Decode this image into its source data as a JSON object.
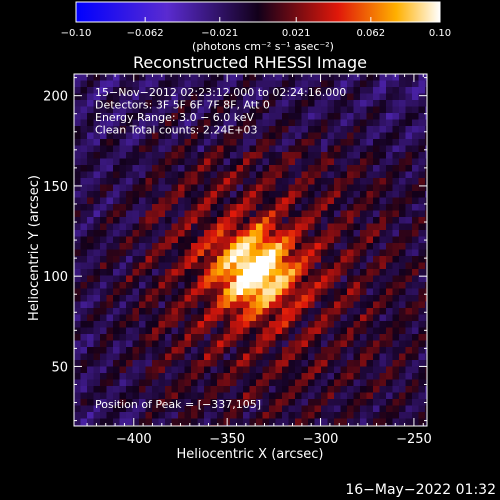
{
  "chart_data": {
    "type": "heatmap",
    "title": "Reconstructed RHESSI Image",
    "xlabel": "Heliocentric X (arcsec)",
    "ylabel": "Heliocentric Y (arcsec)",
    "xlim": [
      -432,
      -243
    ],
    "ylim": [
      17,
      212
    ],
    "x_ticks": [
      -400,
      -350,
      -300,
      -250
    ],
    "x_tick_labels": [
      "−400",
      "−350",
      "−300",
      "−250"
    ],
    "y_ticks": [
      50,
      100,
      150,
      200
    ],
    "y_tick_labels": [
      "50",
      "100",
      "150",
      "200"
    ],
    "colorbar": {
      "min": -0.1,
      "max": 0.1,
      "ticks": [
        -0.1,
        -0.062,
        -0.021,
        0.021,
        0.062,
        0.1
      ],
      "tick_labels": [
        "−0.10",
        "−0.062",
        "−0.021",
        "0.021",
        "0.062",
        "0.10"
      ],
      "unit_label": "(photons cm⁻² s⁻¹ asec⁻²)"
    },
    "annotations": [
      "15−Nov−2012 02:23:12.000 to 02:24:16.000",
      "Detectors: 3F 5F 6F 7F 8F, Att 0",
      "Energy Range: 3.0 − 6.0 keV",
      "Clean      Total counts: 2.24E+03"
    ],
    "peak": {
      "x": -337,
      "y": 105,
      "label": "Position of Peak = [−337,105]"
    },
    "background_color": "#000000"
  },
  "footer": {
    "date": "16−May−2022 01:32"
  }
}
